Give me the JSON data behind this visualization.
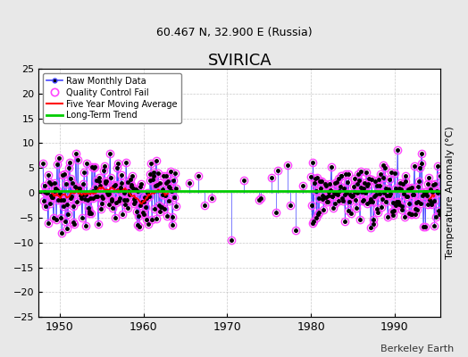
{
  "title": "SVIRICA",
  "subtitle": "60.467 N, 32.900 E (Russia)",
  "ylabel": "Temperature Anomaly (°C)",
  "credit": "Berkeley Earth",
  "xlim": [
    1947.5,
    1995.5
  ],
  "ylim": [
    -25,
    25
  ],
  "yticks": [
    -25,
    -20,
    -15,
    -10,
    -5,
    0,
    5,
    10,
    15,
    20,
    25
  ],
  "xticks": [
    1950,
    1960,
    1970,
    1980,
    1990
  ],
  "long_term_trend_y": 0.3,
  "bg_color": "#e8e8e8",
  "plot_bg": "#ffffff",
  "line_color": "#4444ff",
  "marker_color": "#000000",
  "qc_color": "#ff44ff",
  "ma_color": "#ff0000",
  "trend_color": "#00cc00",
  "seed": 7
}
